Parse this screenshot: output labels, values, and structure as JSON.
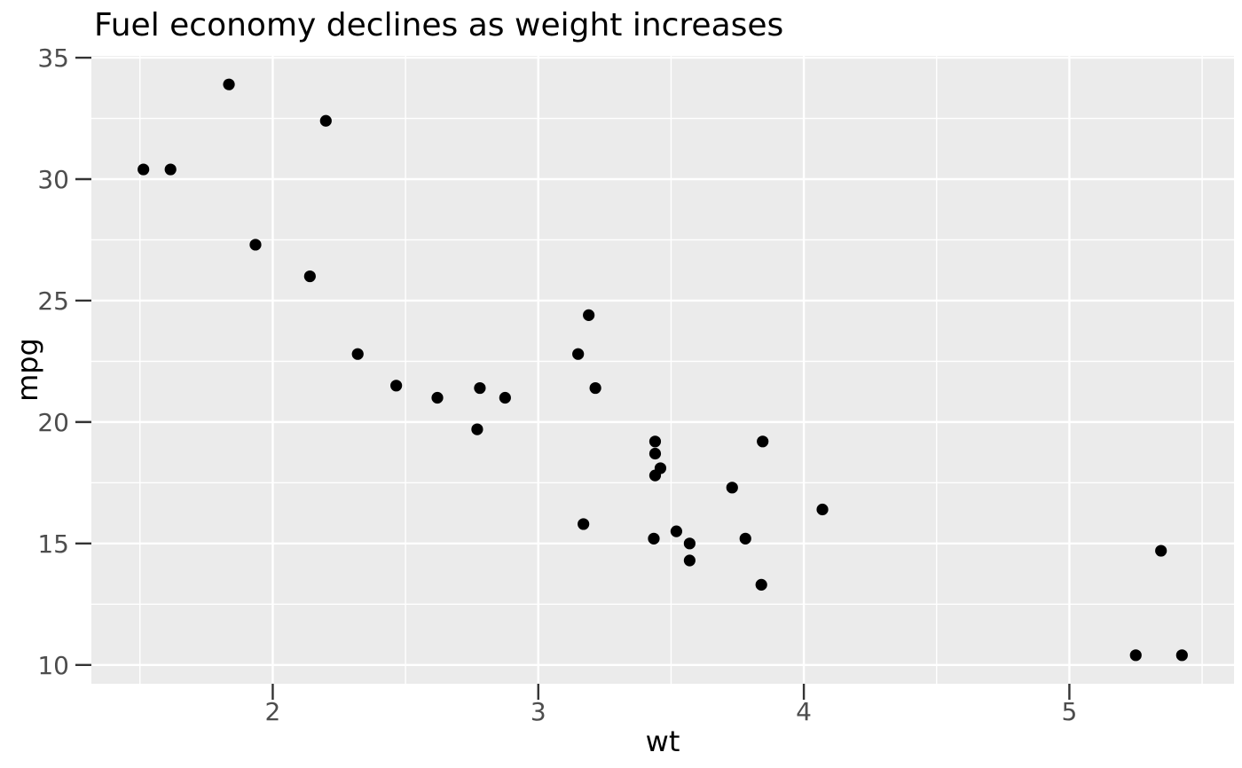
{
  "chart_data": {
    "type": "scatter",
    "title": "Fuel economy declines as weight increases",
    "xlabel": "wt",
    "ylabel": "mpg",
    "xlim": [
      1.317,
      5.62
    ],
    "ylim": [
      9.225,
      35.075
    ],
    "x_major_ticks": [
      2,
      3,
      4,
      5
    ],
    "x_minor_ticks": [
      1.5,
      2.5,
      3.5,
      4.5,
      5.5
    ],
    "y_major_ticks": [
      10,
      15,
      20,
      25,
      30,
      35
    ],
    "y_minor_ticks": [
      12.5,
      17.5,
      22.5,
      27.5,
      32.5
    ],
    "grid": true,
    "legend": false,
    "theme": {
      "panel_bg": "#ebebeb",
      "grid_color": "#ffffff",
      "point_color": "#000000",
      "tick_color": "#333333",
      "tick_label_color": "#4d4d4d",
      "title_color": "#000000",
      "axis_title_color": "#000000"
    },
    "points": [
      {
        "wt": 2.62,
        "mpg": 21.0
      },
      {
        "wt": 2.875,
        "mpg": 21.0
      },
      {
        "wt": 2.32,
        "mpg": 22.8
      },
      {
        "wt": 3.215,
        "mpg": 21.4
      },
      {
        "wt": 3.44,
        "mpg": 18.7
      },
      {
        "wt": 3.46,
        "mpg": 18.1
      },
      {
        "wt": 3.57,
        "mpg": 14.3
      },
      {
        "wt": 3.19,
        "mpg": 24.4
      },
      {
        "wt": 3.15,
        "mpg": 22.8
      },
      {
        "wt": 3.44,
        "mpg": 19.2
      },
      {
        "wt": 3.44,
        "mpg": 17.8
      },
      {
        "wt": 4.07,
        "mpg": 16.4
      },
      {
        "wt": 3.73,
        "mpg": 17.3
      },
      {
        "wt": 3.78,
        "mpg": 15.2
      },
      {
        "wt": 5.25,
        "mpg": 10.4
      },
      {
        "wt": 5.424,
        "mpg": 10.4
      },
      {
        "wt": 5.345,
        "mpg": 14.7
      },
      {
        "wt": 2.2,
        "mpg": 32.4
      },
      {
        "wt": 1.615,
        "mpg": 30.4
      },
      {
        "wt": 1.835,
        "mpg": 33.9
      },
      {
        "wt": 2.465,
        "mpg": 21.5
      },
      {
        "wt": 3.52,
        "mpg": 15.5
      },
      {
        "wt": 3.435,
        "mpg": 15.2
      },
      {
        "wt": 3.84,
        "mpg": 13.3
      },
      {
        "wt": 3.845,
        "mpg": 19.2
      },
      {
        "wt": 1.935,
        "mpg": 27.3
      },
      {
        "wt": 2.14,
        "mpg": 26.0
      },
      {
        "wt": 1.513,
        "mpg": 30.4
      },
      {
        "wt": 3.17,
        "mpg": 15.8
      },
      {
        "wt": 2.77,
        "mpg": 19.7
      },
      {
        "wt": 3.57,
        "mpg": 15.0
      },
      {
        "wt": 2.78,
        "mpg": 21.4
      }
    ]
  }
}
